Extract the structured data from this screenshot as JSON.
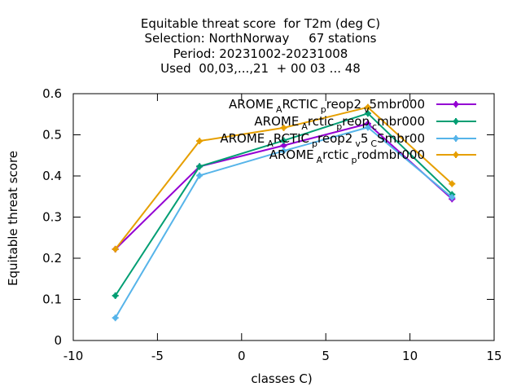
{
  "chart_data": {
    "type": "line",
    "title_lines": [
      "Equitable threat score  for T2m (deg C)",
      "Selection: NorthNorway     67 stations",
      "Period: 20231002-20231008",
      "Used  00,03,...,21  + 00 03 ... 48"
    ],
    "xlabel": "classes C)",
    "ylabel": "Equitable threat score",
    "xlim": [
      -10,
      15
    ],
    "ylim": [
      0,
      0.6
    ],
    "x_ticks": [
      -10,
      -5,
      0,
      5,
      10,
      15
    ],
    "y_ticks": [
      0,
      0.1,
      0.2,
      0.3,
      0.4,
      0.5,
      0.6
    ],
    "x_tick_labels": [
      "-10",
      "-5",
      "0",
      "5",
      "10",
      "15"
    ],
    "y_tick_labels": [
      "0",
      "0.1",
      "0.2",
      "0.3",
      "0.4",
      "0.5",
      "0.6"
    ],
    "grid": false,
    "legend_position": "top-right",
    "x": [
      -7.5,
      -2.5,
      2.5,
      7.5,
      12.5
    ],
    "series": [
      {
        "legend": {
          "base": "AROME",
          "parts": [
            [
              "sub",
              "A"
            ],
            [
              "base",
              "RCTIC"
            ],
            [
              "sub",
              "p"
            ],
            [
              "base",
              "reop2"
            ],
            [
              "sub",
              "v"
            ],
            [
              "base",
              "5mbr000"
            ]
          ]
        },
        "color": "#9400d3",
        "values": [
          0.222,
          0.423,
          0.474,
          0.527,
          0.344
        ]
      },
      {
        "legend": {
          "base": "AROME",
          "parts": [
            [
              "sub",
              "A"
            ],
            [
              "base",
              "rctic"
            ],
            [
              "sub",
              "p"
            ],
            [
              "base",
              "reop"
            ],
            [
              "sub",
              "c"
            ],
            [
              "base",
              "mbr000"
            ]
          ]
        },
        "color": "#009e73",
        "values": [
          0.109,
          0.423,
          0.486,
          0.552,
          0.355
        ]
      },
      {
        "legend": {
          "base": "AROME",
          "parts": [
            [
              "sub",
              "A"
            ],
            [
              "base",
              "RCTIC"
            ],
            [
              "sub",
              "p"
            ],
            [
              "base",
              "reop2"
            ],
            [
              "sub",
              "v"
            ],
            [
              "base",
              "5"
            ],
            [
              "sub",
              "C"
            ],
            [
              "base",
              "Smbr00"
            ]
          ]
        },
        "color": "#56b4e9",
        "values": [
          0.055,
          0.401,
          0.461,
          0.518,
          0.348
        ]
      },
      {
        "legend": {
          "base": "AROME",
          "parts": [
            [
              "sub",
              "A"
            ],
            [
              "base",
              "rctic"
            ],
            [
              "sub",
              "p"
            ],
            [
              "base",
              "rodmbr000"
            ]
          ]
        },
        "color": "#e69f00",
        "values": [
          0.222,
          0.485,
          0.517,
          0.567,
          0.381
        ]
      }
    ]
  }
}
